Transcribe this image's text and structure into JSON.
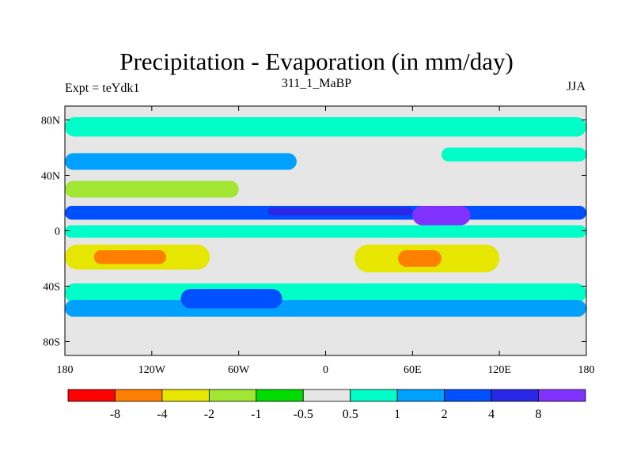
{
  "chart_data": {
    "type": "heatmap",
    "title": "Precipitation - Evaporation (in mm/day)",
    "left_label": "Expt = teYdk1",
    "center_label": "311_1_MaBP",
    "right_label": "JJA",
    "xlim": [
      -180,
      180
    ],
    "ylim": [
      -90,
      90
    ],
    "x_ticks": [
      {
        "value": -180,
        "label": "180"
      },
      {
        "value": -120,
        "label": "120W"
      },
      {
        "value": -60,
        "label": "60W"
      },
      {
        "value": 0,
        "label": "0"
      },
      {
        "value": 60,
        "label": "60E"
      },
      {
        "value": 120,
        "label": "120E"
      },
      {
        "value": 180,
        "label": "180"
      }
    ],
    "y_ticks": [
      {
        "value": 80,
        "label": "80N"
      },
      {
        "value": 40,
        "label": "40N"
      },
      {
        "value": 0,
        "label": "0"
      },
      {
        "value": -40,
        "label": "40S"
      },
      {
        "value": -80,
        "label": "80S"
      }
    ],
    "colorbar": {
      "colors": [
        "#ff0000",
        "#ff8000",
        "#e6e600",
        "#a0e632",
        "#00dc00",
        "#e6e6e6",
        "#00ffc8",
        "#00a0ff",
        "#0050ff",
        "#2828e6",
        "#8232ff"
      ],
      "levels": [
        "-8",
        "-4",
        "-2",
        "-1",
        "-0.5",
        "0.5",
        "1",
        "2",
        "4",
        "8"
      ]
    },
    "bands": [
      {
        "lat": [
          68,
          82
        ],
        "lon": [
          -180,
          180
        ],
        "color_index": 6
      },
      {
        "lat": [
          44,
          56
        ],
        "lon": [
          -180,
          -20
        ],
        "color_index": 7
      },
      {
        "lat": [
          50,
          60
        ],
        "lon": [
          80,
          180
        ],
        "color_index": 6
      },
      {
        "lat": [
          24,
          36
        ],
        "lon": [
          -180,
          -60
        ],
        "color_index": 3
      },
      {
        "lat": [
          8,
          18
        ],
        "lon": [
          -180,
          180
        ],
        "color_index": 8
      },
      {
        "lat": [
          11,
          17
        ],
        "lon": [
          -40,
          60
        ],
        "color_index": 9
      },
      {
        "lat": [
          4,
          18
        ],
        "lon": [
          60,
          100
        ],
        "color_index": 10
      },
      {
        "lat": [
          -5,
          4
        ],
        "lon": [
          -180,
          180
        ],
        "color_index": 6
      },
      {
        "lat": [
          -28,
          -10
        ],
        "lon": [
          -180,
          -80
        ],
        "color_index": 2
      },
      {
        "lat": [
          -24,
          -14
        ],
        "lon": [
          -160,
          -110
        ],
        "color_index": 1
      },
      {
        "lat": [
          -30,
          -10
        ],
        "lon": [
          20,
          120
        ],
        "color_index": 2
      },
      {
        "lat": [
          -26,
          -14
        ],
        "lon": [
          50,
          80
        ],
        "color_index": 1
      },
      {
        "lat": [
          -52,
          -38
        ],
        "lon": [
          -180,
          180
        ],
        "color_index": 6
      },
      {
        "lat": [
          -62,
          -50
        ],
        "lon": [
          -180,
          180
        ],
        "color_index": 7
      },
      {
        "lat": [
          -56,
          -42
        ],
        "lon": [
          -100,
          -30
        ],
        "color_index": 8
      }
    ]
  }
}
